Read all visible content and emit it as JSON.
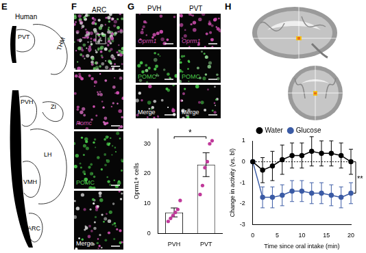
{
  "panels": {
    "E": {
      "letter": "E",
      "title": "Human",
      "regions": [
        "PVT",
        "THM",
        "PVH",
        "ZI",
        "LH",
        "VMH",
        "ARC"
      ]
    },
    "F": {
      "letter": "F",
      "title": "ARC",
      "image_labels": [
        "Pomc",
        "POMC",
        "Merge"
      ]
    },
    "G": {
      "letter": "G",
      "columns": [
        "PVH",
        "PVT"
      ],
      "row_labels": [
        "Oprm1",
        "POMC",
        "Merge"
      ]
    },
    "H": {
      "letter": "H"
    }
  },
  "chart_data": [
    {
      "type": "bar",
      "categories": [
        "PVH",
        "PVT"
      ],
      "values": [
        7,
        23
      ],
      "errors": [
        1.5,
        4
      ],
      "points": [
        [
          4,
          5,
          6,
          7,
          8,
          11
        ],
        [
          13,
          16,
          22,
          24,
          30,
          31
        ]
      ],
      "color": "#c0399a",
      "y_label": "Oprm1+ cells",
      "ylim": [
        0,
        35
      ],
      "yticks": [
        0,
        10,
        20,
        30
      ],
      "grid": false,
      "annotations": [
        {
          "text": "*"
        }
      ]
    },
    {
      "type": "line",
      "x": [
        0,
        2,
        4,
        6,
        8,
        10,
        12,
        14,
        16,
        18,
        20
      ],
      "series": [
        {
          "name": "Water",
          "color": "#000000",
          "marker": "circle",
          "values": [
            0,
            -0.4,
            -0.2,
            0.1,
            0.3,
            0.3,
            0.5,
            0.4,
            0.4,
            0.3,
            0.0
          ],
          "errors": [
            0,
            0.6,
            0.7,
            0.7,
            0.6,
            0.6,
            0.7,
            0.6,
            0.6,
            0.6,
            0.6
          ]
        },
        {
          "name": "Glucose",
          "color": "#3b5ba5",
          "marker": "circle",
          "values": [
            0,
            -1.7,
            -1.7,
            -1.6,
            -1.4,
            -1.4,
            -1.5,
            -1.5,
            -1.6,
            -1.7,
            -1.5
          ],
          "errors": [
            0,
            0.5,
            0.5,
            0.5,
            0.5,
            0.5,
            0.5,
            0.5,
            0.5,
            0.5,
            0.5
          ]
        }
      ],
      "x_label": "Time since oral intake (min)",
      "y_label": "Change in activity (vs. bl)",
      "xlim": [
        0,
        20
      ],
      "xticks": [
        0,
        5,
        10,
        15,
        20
      ],
      "ylim": [
        -3,
        1
      ],
      "yticks": [
        -3,
        -2,
        -1,
        0,
        1
      ],
      "baseline": 0,
      "grid": false,
      "legend": "top",
      "annotations": [
        {
          "text": "**"
        }
      ]
    }
  ]
}
